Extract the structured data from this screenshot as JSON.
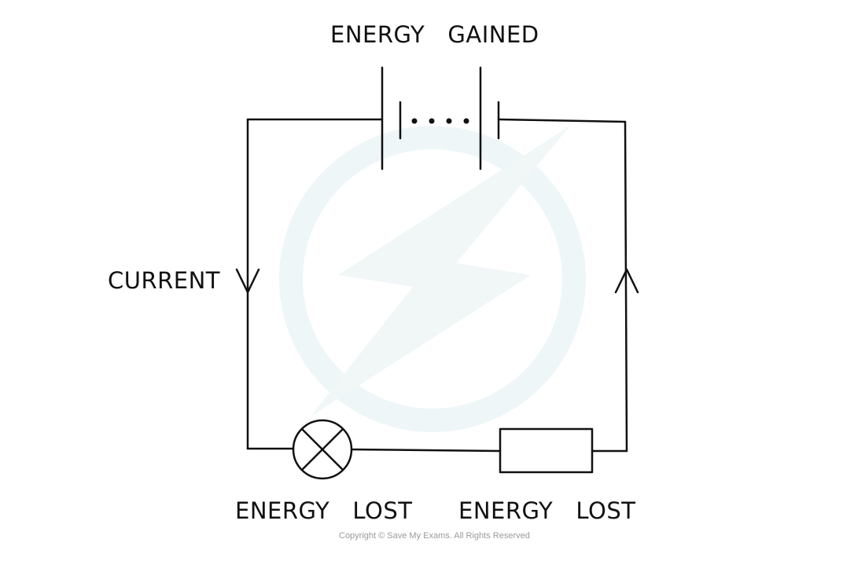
{
  "labels": {
    "energy_gained": "ENERGY   GAINED",
    "current": "CURRENT",
    "energy_lost_lamp": "ENERGY   LOST",
    "energy_lost_resistor": "ENERGY   LOST"
  },
  "footer": {
    "copyright": "Copyright © Save My Exams. All Rights Reserved"
  },
  "colors": {
    "line": "#111111",
    "watermark": "#eef6f8",
    "copyright": "#9a9a9a"
  }
}
